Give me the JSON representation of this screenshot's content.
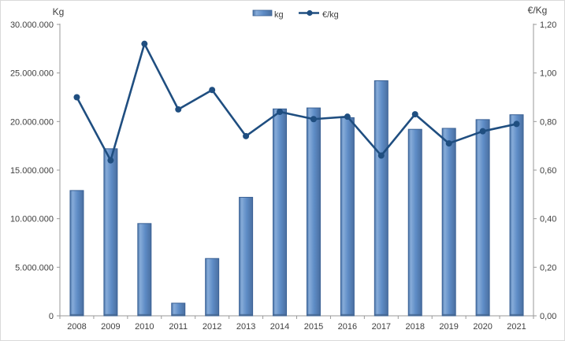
{
  "chart_data": {
    "type": "bar+line",
    "categories": [
      "2008",
      "2009",
      "2010",
      "2011",
      "2012",
      "2013",
      "2014",
      "2015",
      "2016",
      "2017",
      "2018",
      "2019",
      "2020",
      "2021"
    ],
    "series": [
      {
        "name": "kg",
        "type": "bar",
        "axis": "left",
        "values": [
          12900000,
          17200000,
          9500000,
          1300000,
          5900000,
          12200000,
          21300000,
          21400000,
          20400000,
          24200000,
          19200000,
          19300000,
          20200000,
          20700000
        ]
      },
      {
        "name": "€/kg",
        "type": "line",
        "axis": "right",
        "values": [
          0.9,
          0.64,
          1.12,
          0.85,
          0.93,
          0.74,
          0.84,
          0.81,
          0.82,
          0.66,
          0.83,
          0.71,
          0.76,
          0.79
        ]
      }
    ],
    "left_axis": {
      "title": "Kg",
      "min": 0,
      "max": 30000000,
      "tick_labels": [
        "0",
        "5.000.000",
        "10.000.000",
        "15.000.000",
        "20.000.000",
        "25.000.000",
        "30.000.000"
      ]
    },
    "right_axis": {
      "title": "€/Kg",
      "min": 0,
      "max": 1.2,
      "tick_labels": [
        "0,00",
        "0,20",
        "0,40",
        "0,60",
        "0,80",
        "1,00",
        "1,20"
      ]
    },
    "legend": {
      "position": "top",
      "entries": [
        {
          "label": "kg",
          "swatch": "bar-swatch"
        },
        {
          "label": "€/kg",
          "swatch": "line-marker-swatch"
        }
      ]
    },
    "grid": false,
    "colors": {
      "bar_fill": "#5E8CC6",
      "bar_fill_light": "#87ACD9",
      "bar_edge": "#3A6195",
      "bar_base": "#44658F",
      "line": "#1F4E80",
      "axis": "#9A9A9A",
      "text": "#3F3F3F"
    }
  }
}
